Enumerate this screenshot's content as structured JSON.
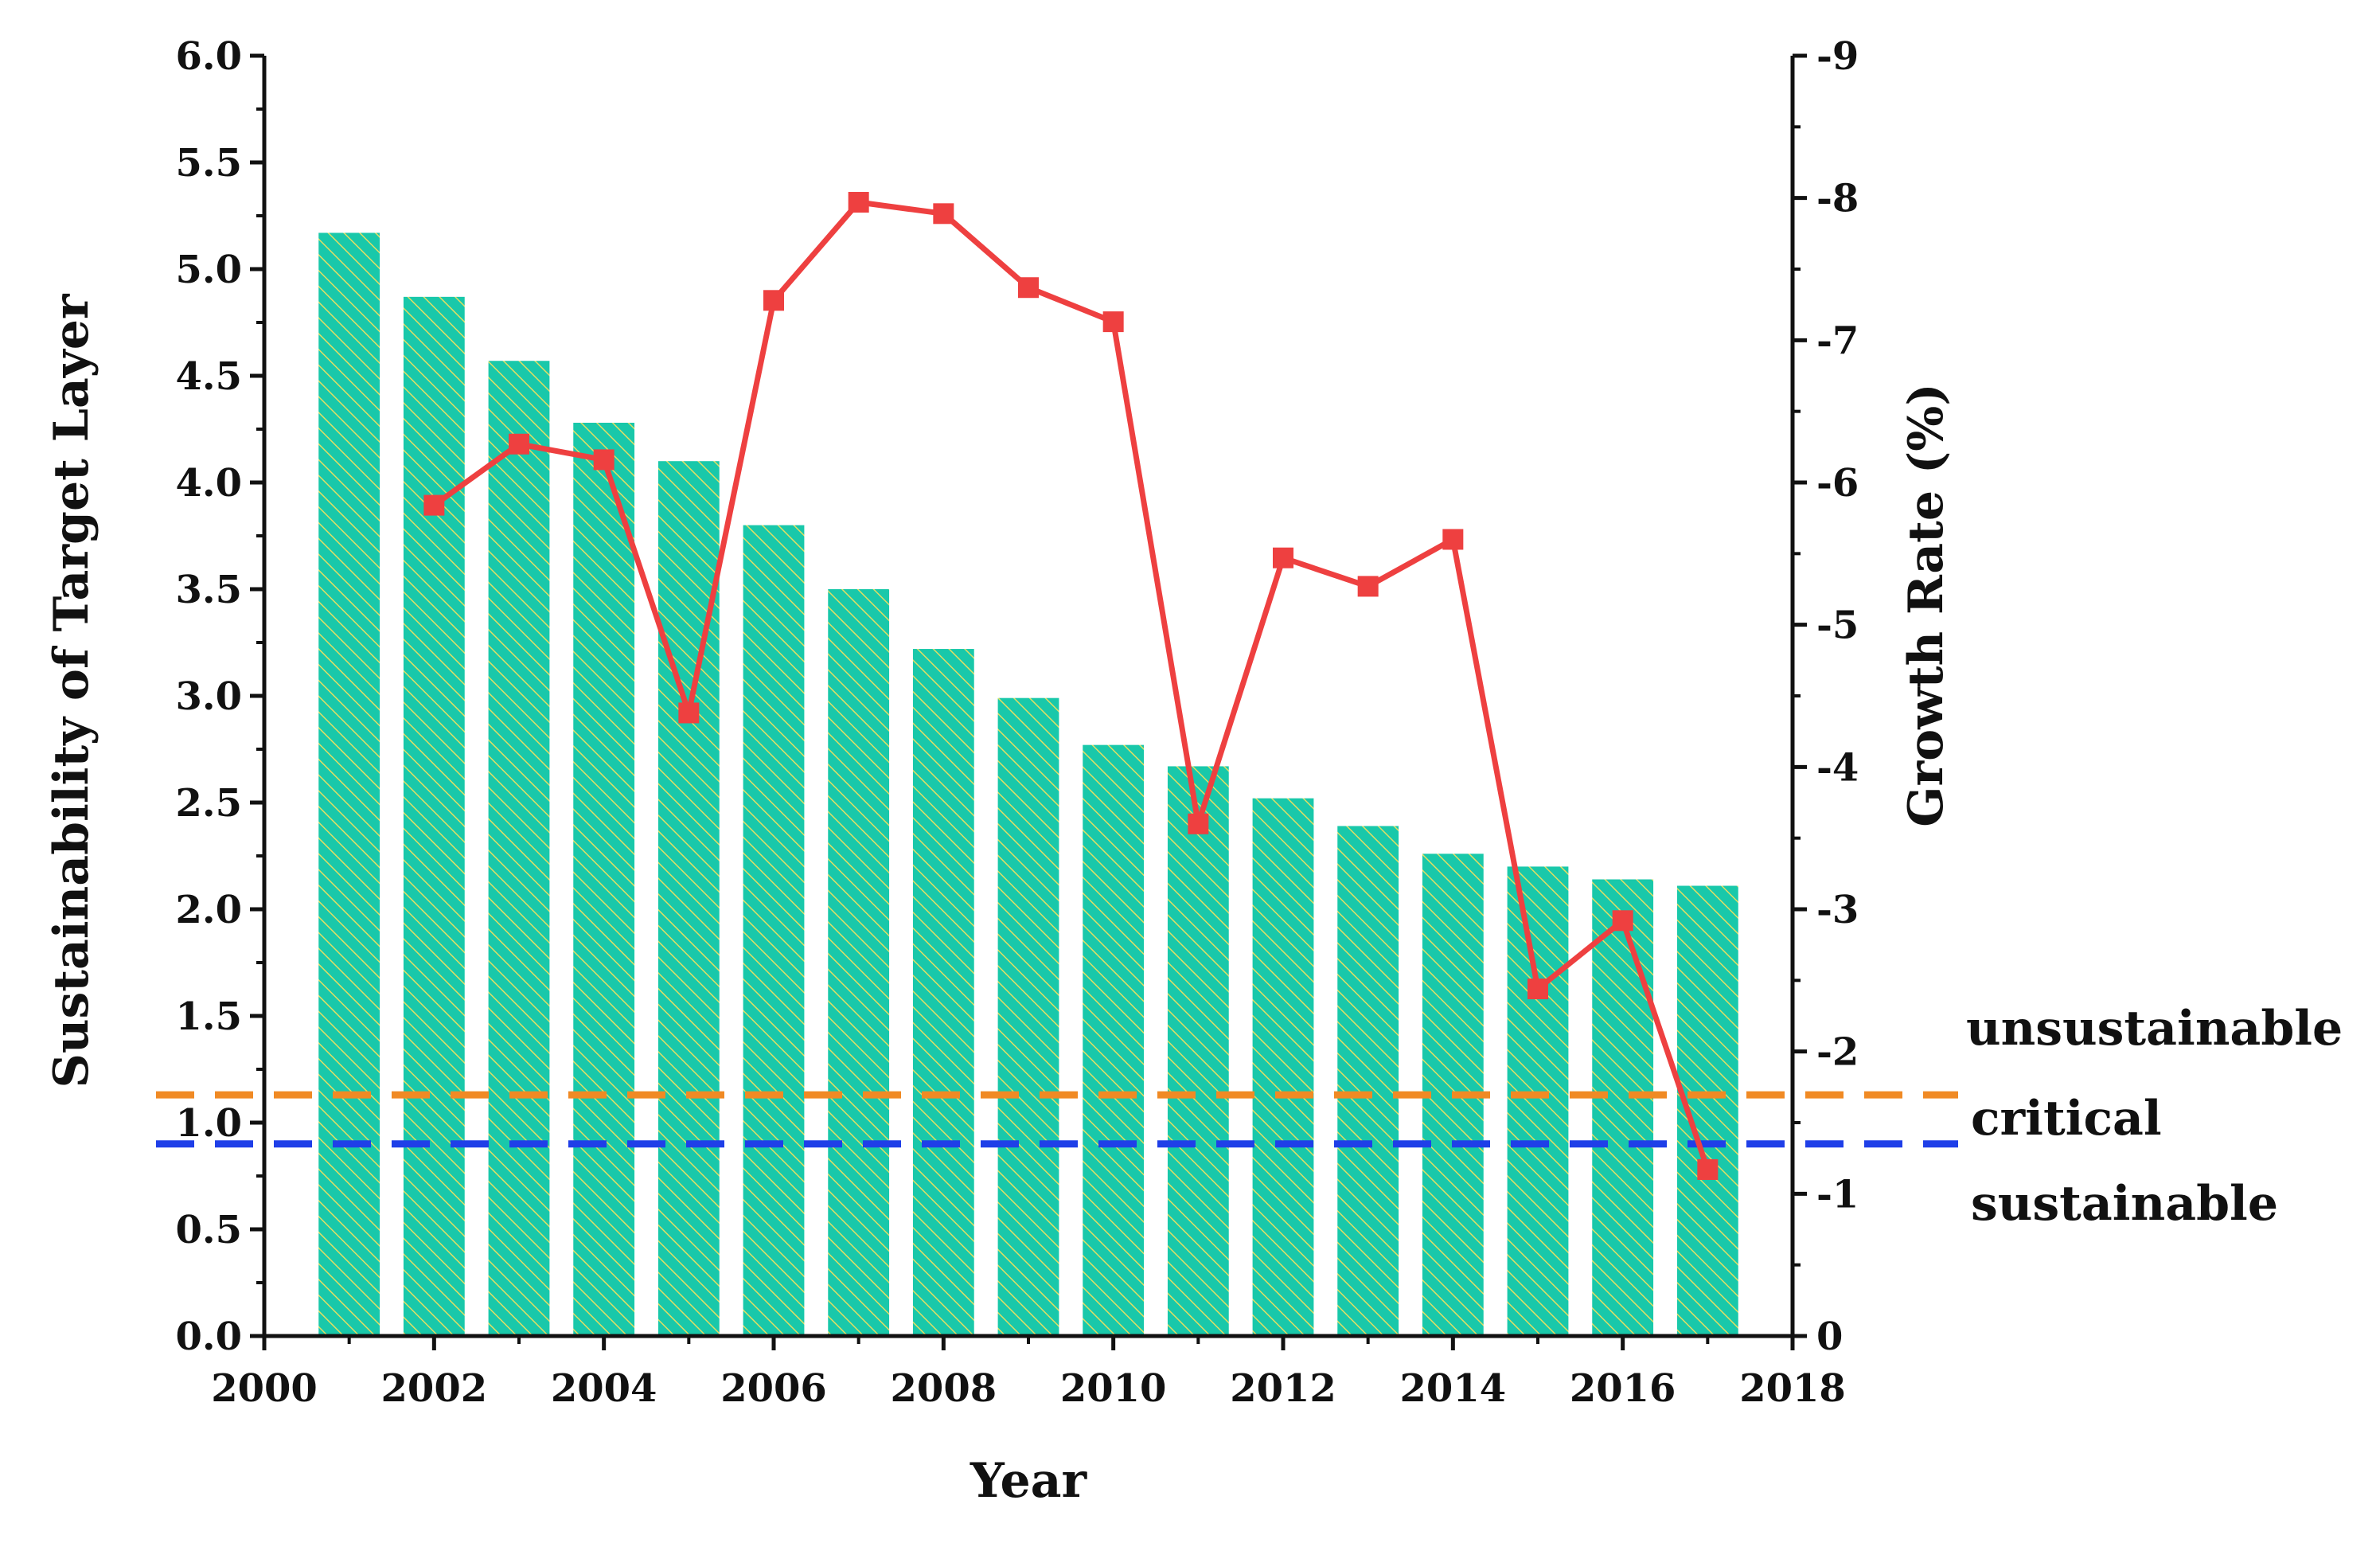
{
  "chart_data": {
    "type": "bar",
    "title": "",
    "xlabel": "Year",
    "ylabel": "Sustainability of Target Layer",
    "y2label": "Growth Rate (%)",
    "xlim": [
      2000,
      2018
    ],
    "xticks": [
      "2000",
      "2002",
      "2004",
      "2006",
      "2008",
      "2010",
      "2012",
      "2014",
      "2016",
      "2018"
    ],
    "ylim": [
      0,
      6
    ],
    "yticks": [
      "0.0",
      "0.5",
      "1.0",
      "1.5",
      "2.0",
      "2.5",
      "3.0",
      "3.5",
      "4.0",
      "4.5",
      "5.0",
      "5.5",
      "6.0"
    ],
    "y2lim": [
      0,
      -9
    ],
    "y2ticks": [
      "0",
      "-1",
      "-2",
      "-3",
      "-4",
      "-5",
      "-6",
      "-7",
      "-8",
      "-9"
    ],
    "grid": false,
    "series": [
      {
        "name": "Sustainability",
        "kind": "bar",
        "axis": "left",
        "color": "#19C8AA",
        "hatch_color": "#E3DE62",
        "x": [
          2001,
          2002,
          2003,
          2004,
          2005,
          2006,
          2007,
          2008,
          2009,
          2010,
          2011,
          2012,
          2013,
          2014,
          2015,
          2016,
          2017
        ],
        "values": [
          5.17,
          4.87,
          4.57,
          4.28,
          4.1,
          3.8,
          3.5,
          3.22,
          2.99,
          2.77,
          2.67,
          2.52,
          2.39,
          2.26,
          2.2,
          2.14,
          2.11
        ]
      },
      {
        "name": "Growth Rate",
        "kind": "line",
        "axis": "right",
        "color": "#EE4040",
        "x": [
          2002,
          2003,
          2004,
          2005,
          2006,
          2007,
          2008,
          2009,
          2010,
          2011,
          2012,
          2013,
          2014,
          2015,
          2016,
          2017
        ],
        "values": [
          -5.84,
          -6.27,
          -6.16,
          -4.38,
          -7.28,
          -7.97,
          -7.89,
          -7.37,
          -7.13,
          -3.6,
          -5.47,
          -5.27,
          -5.6,
          -2.44,
          -2.92,
          -1.17
        ]
      }
    ],
    "reference_lines": [
      {
        "name": "unsustainable-critical threshold",
        "axis": "left",
        "value": 1.13,
        "color": "#F08A24",
        "style": "dashed"
      },
      {
        "name": "critical-sustainable threshold",
        "axis": "left",
        "value": 0.9,
        "color": "#1F3FE8",
        "style": "dashed"
      }
    ],
    "zone_labels": [
      "unsustainable",
      "critical",
      "sustainable"
    ]
  }
}
